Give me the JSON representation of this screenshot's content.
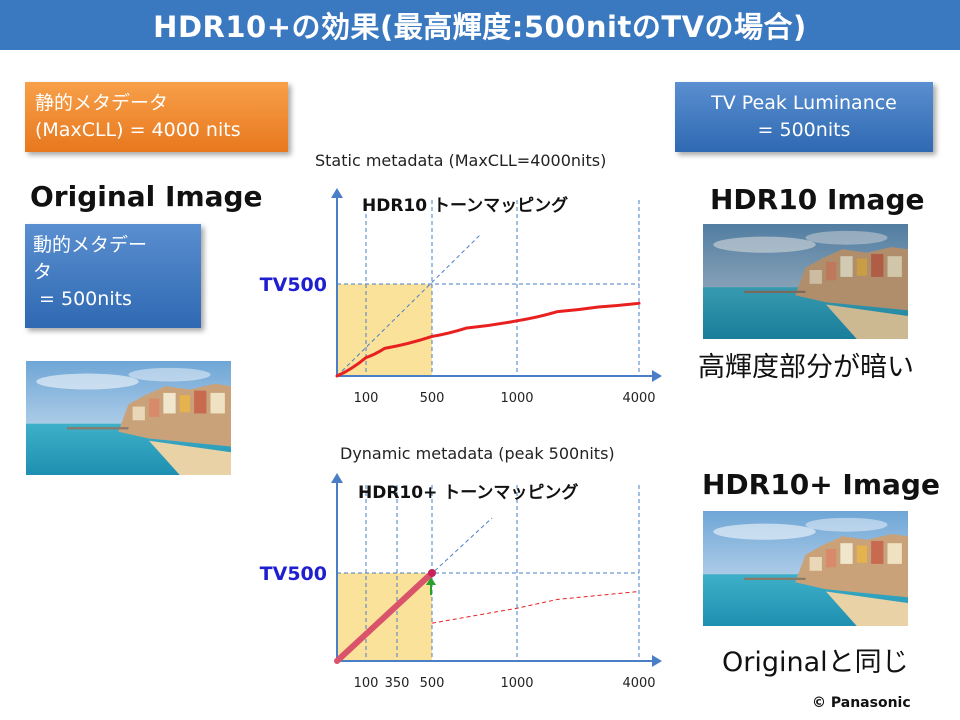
{
  "title": "HDR10+の効果(最高輝度:500nitのTVの場合)",
  "static_box": {
    "line1": "静的メタデータ",
    "line2": "(MaxCLL) = 4000 nits"
  },
  "peak_box": {
    "line1": "TV Peak Luminance",
    "line2": "= 500nits"
  },
  "dynamic_box": {
    "line1": "動的メタデー",
    "line2": "タ",
    "line3": " = 500nits"
  },
  "original_heading": "Original Image",
  "hdr10_heading": "HDR10 Image",
  "hdr10plus_heading": "HDR10+ Image",
  "hdr10_caption": "高輝度部分が暗い",
  "hdr10plus_caption": "Originalと同じ",
  "copyright": "© Panasonic",
  "colors": {
    "title_bar": "#3a78c0",
    "orange": "#f08a2c",
    "blue_box": "#3d76c0",
    "curve_red": "#e82020",
    "tv_label": "#1f1fd0",
    "highlight": "#fbe29a",
    "axis": "#4a7fc8",
    "bold_line": "#d9536a"
  },
  "chart_data": [
    {
      "type": "line",
      "title": "Static metadata (MaxCLL=4000nits)",
      "annotation": "HDR10 トーンマッピング",
      "y_marker_label": "TV500",
      "x_ticks": [
        "100",
        "500",
        "1000",
        "4000"
      ],
      "series": [
        {
          "points": [
            [
              0,
              0
            ],
            [
              100,
              100
            ],
            [
              250,
              150
            ],
            [
              500,
              215
            ],
            [
              700,
              260
            ],
            [
              1000,
              300
            ],
            [
              2000,
              350
            ],
            [
              3000,
              375
            ],
            [
              4000,
              395
            ]
          ]
        }
      ]
    },
    {
      "type": "line",
      "title": "Dynamic metadata (peak 500nits)",
      "annotation": "HDR10+ トーンマッピング",
      "y_marker_label": "TV500",
      "x_ticks": [
        "100",
        "350",
        "500",
        "1000",
        "4000"
      ],
      "series": [
        {
          "points": [
            [
              0,
              0
            ],
            [
              500,
              500
            ]
          ]
        }
      ]
    }
  ]
}
